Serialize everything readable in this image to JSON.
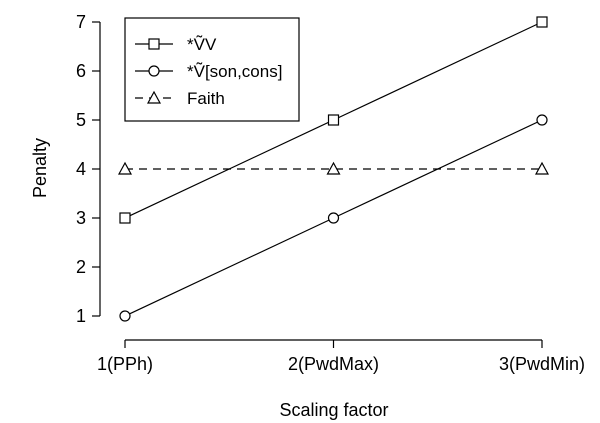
{
  "chart_data": {
    "type": "line",
    "title": "",
    "xlabel": "Scaling factor",
    "ylabel": "Penalty",
    "categories": [
      "1(PPh)",
      "2(PwdMax)",
      "3(PwdMin)"
    ],
    "x": [
      1,
      2,
      3
    ],
    "ylim": [
      1,
      7
    ],
    "yticks": [
      1,
      2,
      3,
      4,
      5,
      6,
      7
    ],
    "grid": false,
    "legend_position": "top-left",
    "series": [
      {
        "name": "*ṼV",
        "values": [
          3,
          5,
          7
        ],
        "marker": "square",
        "line_style": "solid",
        "color": "#000000"
      },
      {
        "name": "*Ṽ[son,cons]",
        "values": [
          1,
          3,
          5
        ],
        "marker": "circle",
        "line_style": "solid",
        "color": "#000000"
      },
      {
        "name": "Faith",
        "values": [
          4,
          4,
          4
        ],
        "marker": "triangle",
        "line_style": "dashed",
        "color": "#000000"
      }
    ]
  }
}
